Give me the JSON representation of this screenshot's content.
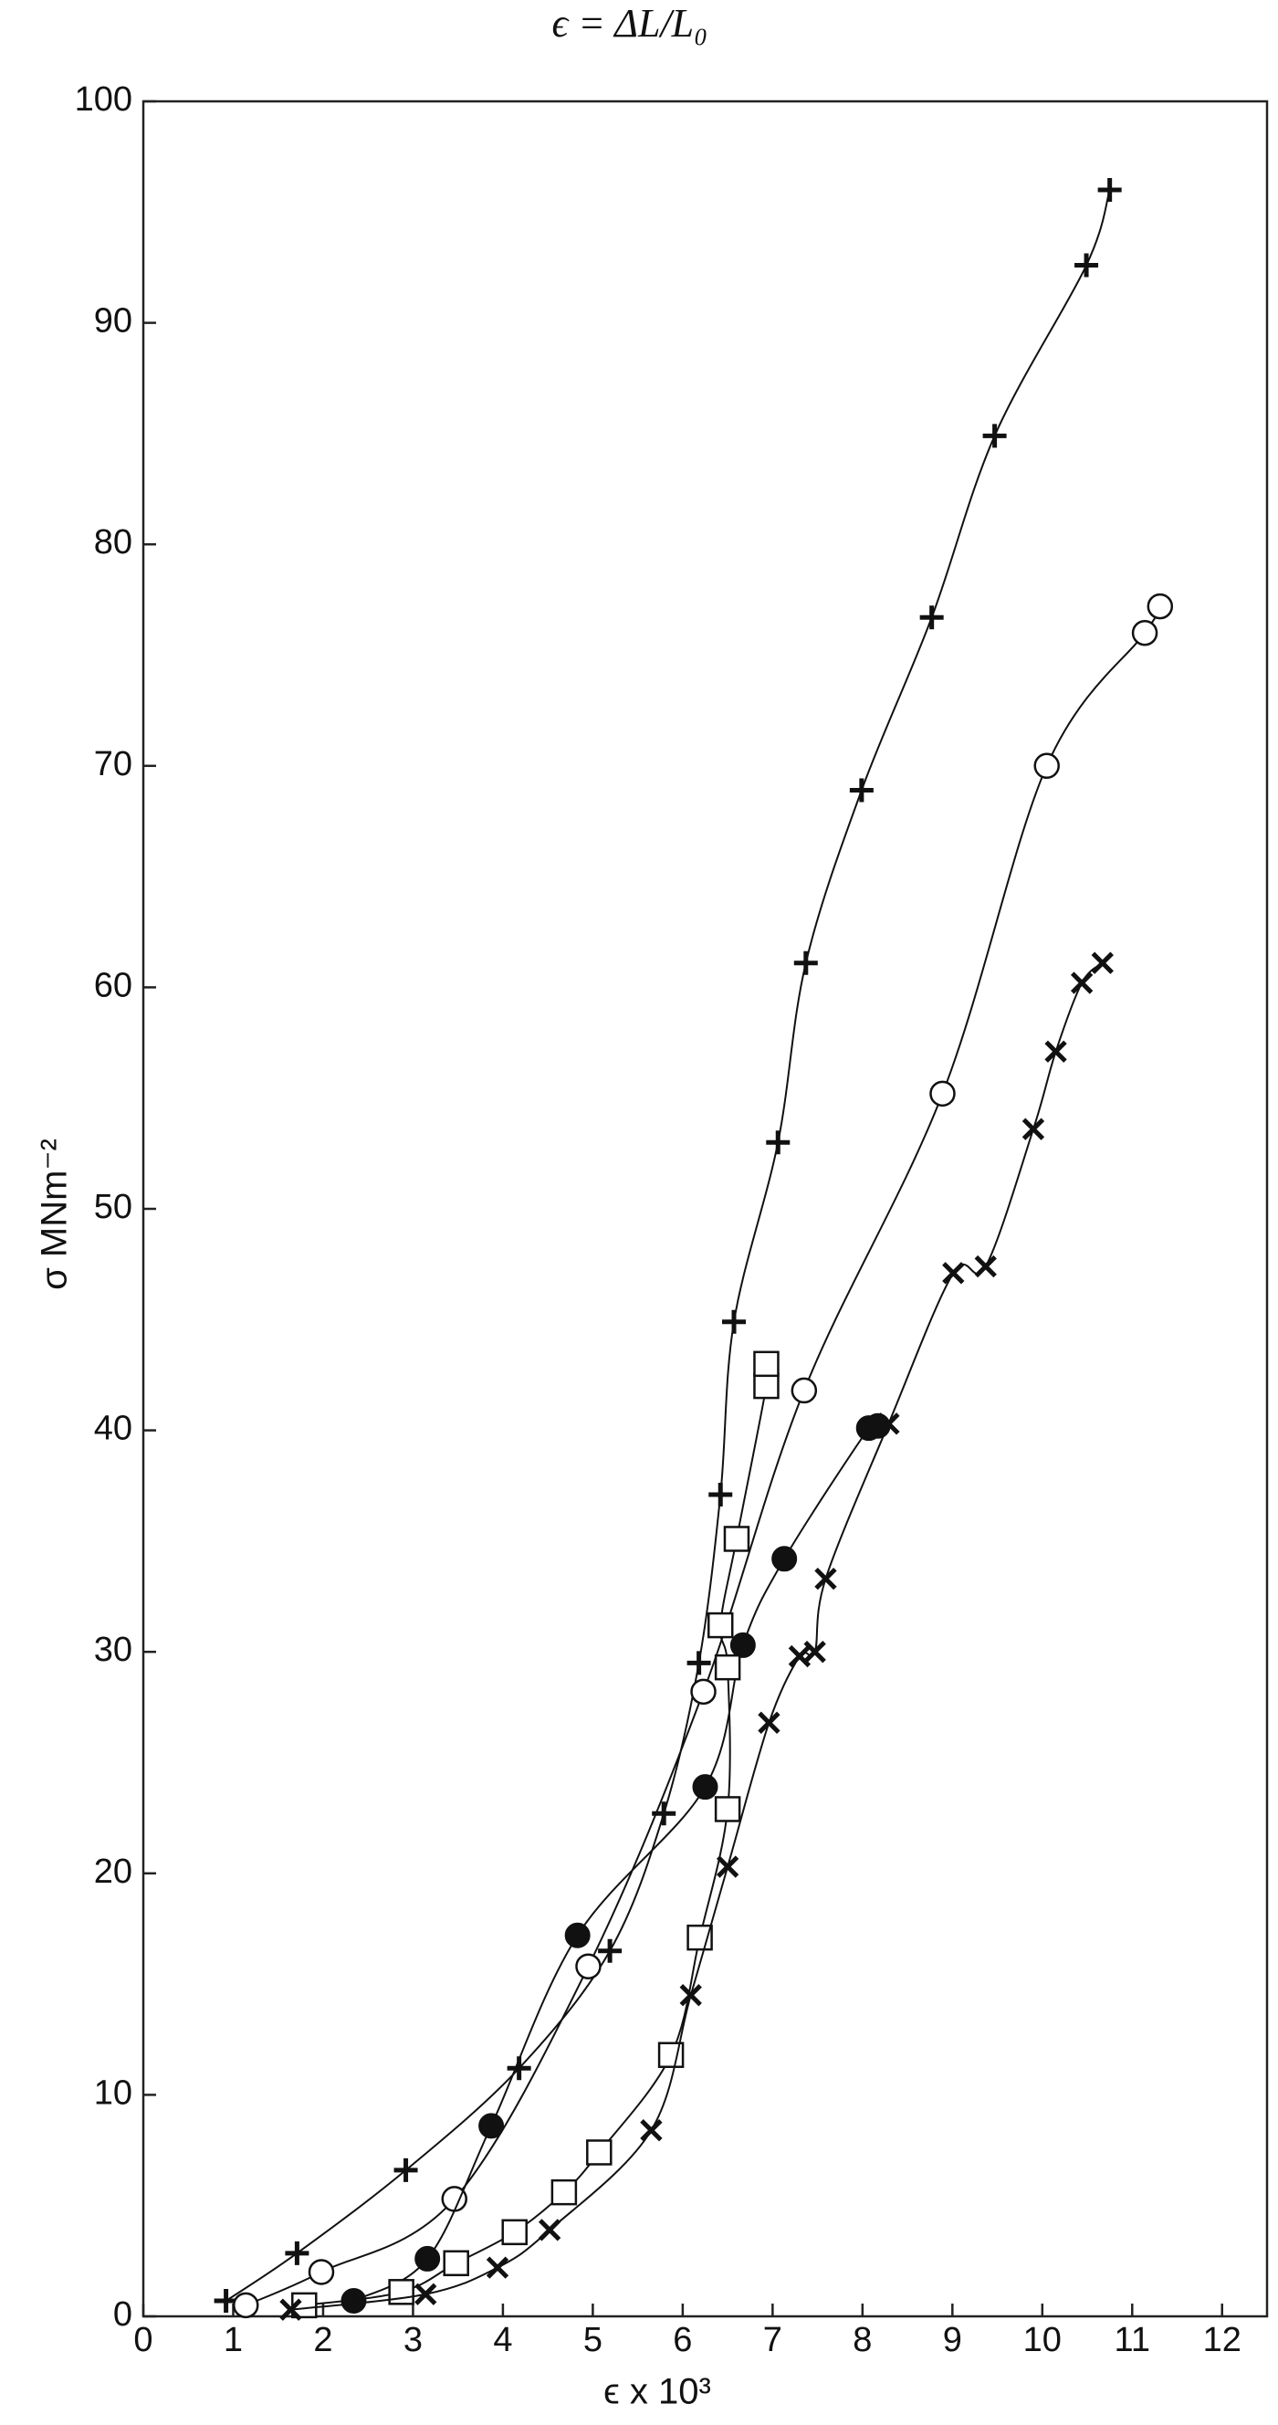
{
  "chart_data": {
    "type": "scatter",
    "title": "ϵ = ΔL/L₀",
    "x_label": "ϵ x 10³",
    "y_label": "σ MNm⁻²",
    "xlim": [
      0,
      12.5
    ],
    "ylim": [
      0,
      100
    ],
    "xticks": [
      0,
      1,
      2,
      3,
      4,
      5,
      6,
      7,
      8,
      9,
      10,
      11,
      12
    ],
    "yticks": [
      0,
      10,
      20,
      30,
      40,
      50,
      60,
      70,
      80,
      90,
      100
    ],
    "grid": false,
    "series": [
      {
        "marker": "plus",
        "color": "#111111",
        "x": [
          0.92,
          1.71,
          2.92,
          4.18,
          5.19,
          5.79,
          6.18,
          6.42,
          6.57,
          7.06,
          7.37,
          7.99,
          8.77,
          9.47,
          10.49,
          10.75
        ],
        "values": [
          0.7,
          2.85,
          6.6,
          11.2,
          16.5,
          22.7,
          29.5,
          37.1,
          44.9,
          53.0,
          61.1,
          68.9,
          76.7,
          84.9,
          92.6,
          96.0
        ]
      },
      {
        "marker": "circle-open",
        "color": "#111111",
        "x": [
          1.14,
          1.98,
          3.46,
          4.95,
          6.23,
          7.35,
          8.89,
          10.05,
          11.14,
          11.31
        ],
        "values": [
          0.5,
          2.0,
          5.3,
          15.8,
          28.2,
          41.8,
          55.2,
          70.0,
          76.0,
          77.2
        ]
      },
      {
        "marker": "circle-filled",
        "color": "#111111",
        "x": [
          2.34,
          3.16,
          3.87,
          4.83,
          6.25,
          6.67,
          7.13,
          8.07,
          8.17
        ],
        "values": [
          0.7,
          2.6,
          8.6,
          17.2,
          23.9,
          30.3,
          34.2,
          40.1,
          40.2
        ]
      },
      {
        "marker": "square",
        "color": "#111111",
        "x": [
          1.79,
          2.87,
          3.48,
          4.13,
          4.68,
          5.07,
          5.87,
          6.19,
          6.5,
          6.5,
          6.42,
          6.6,
          6.93,
          6.93
        ],
        "values": [
          0.5,
          1.1,
          2.4,
          3.8,
          5.6,
          7.4,
          11.8,
          17.1,
          22.9,
          29.3,
          31.2,
          35.1,
          42.0,
          43.0
        ]
      },
      {
        "marker": "x",
        "color": "#111111",
        "x": [
          1.64,
          3.14,
          3.94,
          4.52,
          5.65,
          6.09,
          6.5,
          6.96,
          7.3,
          7.47,
          7.59,
          8.29,
          9.01,
          9.37,
          9.9,
          10.15,
          10.44,
          10.67
        ],
        "values": [
          0.3,
          1.0,
          2.2,
          3.9,
          8.4,
          14.5,
          20.3,
          26.8,
          29.8,
          30.0,
          33.3,
          40.3,
          47.1,
          47.4,
          53.6,
          57.1,
          60.2,
          61.1
        ]
      }
    ]
  }
}
